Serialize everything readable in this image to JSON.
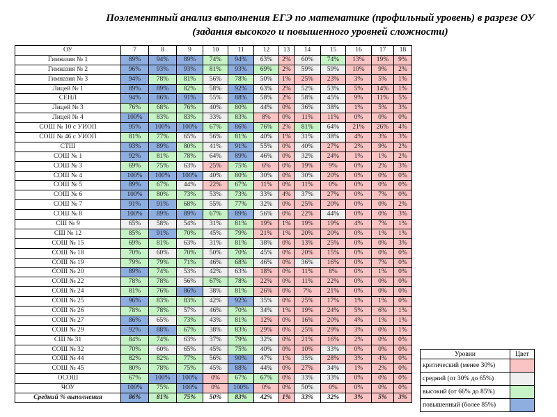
{
  "title": {
    "line1": "Поэлементный анализ выполнения ЕГЭ по математике (профильный уровень) в разрезе ОУ",
    "line2": "(задания высокого и повышенного уровней сложности)"
  },
  "table": {
    "headers": [
      "ОУ",
      "7",
      "8",
      "9",
      "10",
      "11",
      "12",
      "13",
      "14",
      "15",
      "16",
      "17",
      "18"
    ],
    "rows": [
      [
        "Гимназия № 1",
        89,
        94,
        89,
        74,
        94,
        63,
        2,
        60,
        74,
        13,
        19,
        9
      ],
      [
        "Гимназия № 2",
        96,
        93,
        93,
        81,
        93,
        69,
        2,
        59,
        59,
        10,
        9,
        2
      ],
      [
        "Гимназия № 3",
        94,
        78,
        81,
        56,
        78,
        50,
        1,
        25,
        23,
        3,
        5,
        1
      ],
      [
        "Лицей № 1",
        89,
        89,
        82,
        58,
        92,
        63,
        2,
        52,
        53,
        5,
        14,
        1
      ],
      [
        "СЕНЛ",
        94,
        86,
        91,
        55,
        88,
        58,
        2,
        58,
        45,
        9,
        11,
        5
      ],
      [
        "Лицей № 3",
        76,
        68,
        76,
        40,
        80,
        44,
        0,
        36,
        38,
        1,
        5,
        3
      ],
      [
        "Лицей № 4",
        100,
        83,
        83,
        33,
        83,
        8,
        0,
        11,
        11,
        0,
        0,
        0
      ],
      [
        "СОШ № 10 с УИОП",
        95,
        100,
        100,
        67,
        86,
        76,
        2,
        81,
        64,
        21,
        26,
        4
      ],
      [
        "СОШ № 46 с УИОП",
        81,
        77,
        65,
        56,
        81,
        40,
        1,
        31,
        38,
        4,
        3,
        3
      ],
      [
        "СТШ",
        93,
        89,
        80,
        41,
        91,
        55,
        0,
        40,
        27,
        2,
        9,
        2
      ],
      [
        "СОШ № 1",
        92,
        81,
        78,
        64,
        89,
        46,
        0,
        32,
        24,
        1,
        1,
        2
      ],
      [
        "СОШ № 3",
        69,
        75,
        63,
        25,
        75,
        6,
        0,
        19,
        9,
        0,
        2,
        3
      ],
      [
        "СОШ № 4",
        100,
        100,
        100,
        40,
        80,
        30,
        0,
        30,
        20,
        0,
        0,
        0
      ],
      [
        "СОШ № 5",
        89,
        67,
        44,
        22,
        67,
        11,
        0,
        11,
        0,
        0,
        0,
        0
      ],
      [
        "СОШ № 6",
        100,
        80,
        73,
        53,
        73,
        33,
        4,
        37,
        27,
        0,
        7,
        0
      ],
      [
        "СОШ № 7",
        91,
        91,
        68,
        55,
        77,
        32,
        0,
        25,
        20,
        0,
        0,
        2
      ],
      [
        "СОШ № 8",
        100,
        89,
        89,
        67,
        89,
        56,
        0,
        22,
        44,
        0,
        0,
        3
      ],
      [
        "СШ № 9",
        65,
        58,
        54,
        31,
        81,
        19,
        1,
        19,
        19,
        4,
        7,
        1
      ],
      [
        "СШ № 12",
        85,
        91,
        70,
        45,
        79,
        21,
        1,
        20,
        20,
        0,
        1,
        1
      ],
      [
        "СОШ № 15",
        69,
        81,
        63,
        31,
        81,
        38,
        0,
        13,
        25,
        0,
        0,
        3
      ],
      [
        "СОШ № 18",
        70,
        60,
        70,
        50,
        70,
        45,
        0,
        20,
        15,
        0,
        0,
        0
      ],
      [
        "СОШ № 19",
        79,
        79,
        71,
        46,
        68,
        46,
        0,
        36,
        16,
        0,
        7,
        0
      ],
      [
        "СОШ № 20",
        89,
        74,
        53,
        42,
        63,
        18,
        0,
        11,
        8,
        0,
        1,
        0
      ],
      [
        "СОШ № 22",
        78,
        78,
        56,
        67,
        78,
        22,
        0,
        11,
        22,
        0,
        0,
        0
      ],
      [
        "СОШ № 24",
        81,
        76,
        86,
        38,
        81,
        26,
        0,
        7,
        21,
        0,
        0,
        0
      ],
      [
        "СОШ № 25",
        96,
        83,
        83,
        42,
        92,
        35,
        0,
        25,
        17,
        1,
        1,
        0
      ],
      [
        "СОШ № 26",
        78,
        78,
        57,
        46,
        70,
        34,
        1,
        19,
        24,
        5,
        6,
        1
      ],
      [
        "СОШ № 27",
        86,
        65,
        73,
        43,
        81,
        12,
        0,
        16,
        20,
        4,
        1,
        1
      ],
      [
        "СОШ № 29",
        92,
        88,
        67,
        38,
        83,
        29,
        0,
        25,
        29,
        3,
        0,
        1
      ],
      [
        "СШ № 31",
        84,
        74,
        63,
        37,
        79,
        32,
        0,
        21,
        16,
        2,
        0,
        0
      ],
      [
        "СОШ № 32",
        70,
        60,
        65,
        45,
        75,
        40,
        0,
        10,
        33,
        0,
        0,
        0
      ],
      [
        "СОШ № 44",
        82,
        82,
        77,
        56,
        90,
        47,
        1,
        35,
        28,
        3,
        4,
        0
      ],
      [
        "СОШ № 45",
        80,
        78,
        75,
        45,
        88,
        44,
        0,
        27,
        34,
        1,
        2,
        0
      ],
      [
        "ОСОШ",
        67,
        100,
        100,
        0,
        67,
        67,
        0,
        33,
        33,
        0,
        0,
        0
      ],
      [
        "ЧОУ",
        100,
        75,
        100,
        0,
        100,
        0,
        0,
        50,
        0,
        0,
        0,
        0
      ]
    ],
    "average": [
      "Средний % выполнения",
      86,
      81,
      75,
      50,
      83,
      42,
      1,
      33,
      32,
      3,
      5,
      3
    ]
  },
  "legend": {
    "header": [
      "Уровни",
      "Цвет"
    ],
    "items": [
      {
        "label": "критический (менее 30%)",
        "color": "#fbc4c4"
      },
      {
        "label": "средний (от 30% до 65%)",
        "color": "#efefef"
      },
      {
        "label": "высокий (от 66% до 85%)",
        "color": "#c6f3c6"
      },
      {
        "label": "повышенный (более 85%)",
        "color": "#8eaee0"
      }
    ]
  }
}
